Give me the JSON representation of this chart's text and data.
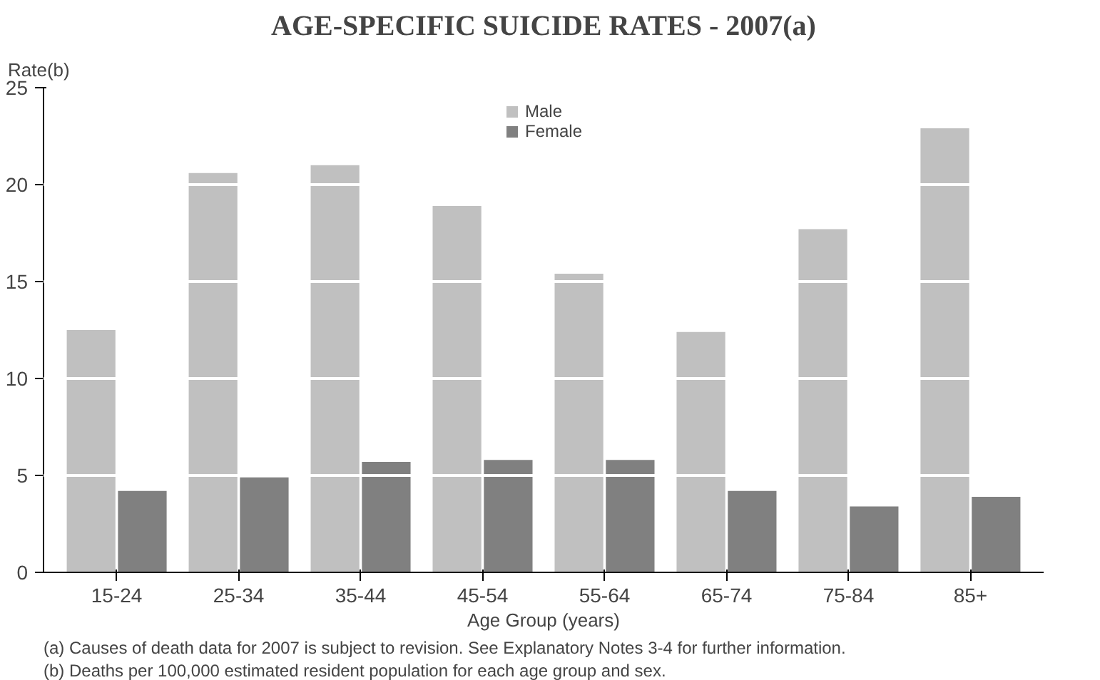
{
  "chart_data": {
    "type": "bar",
    "title": "AGE-SPECIFIC SUICIDE RATES - 2007(a)",
    "xlabel": "Age Group (years)",
    "ylabel": "Rate(b)",
    "categories": [
      "15-24",
      "25-34",
      "35-44",
      "45-54",
      "55-64",
      "65-74",
      "75-84",
      "85+"
    ],
    "series": [
      {
        "name": "Male",
        "color": "#c0c0c0",
        "values": [
          12.5,
          20.6,
          21.0,
          18.9,
          15.4,
          12.4,
          17.7,
          22.9
        ]
      },
      {
        "name": "Female",
        "color": "#808080",
        "values": [
          4.2,
          4.9,
          5.7,
          5.8,
          5.8,
          4.2,
          3.4,
          3.9
        ]
      }
    ],
    "ylim": [
      0,
      25
    ],
    "yticks": [
      0,
      5,
      10,
      15,
      20,
      25
    ],
    "grid": "y",
    "legend": "top",
    "annotations": [
      "(a) Causes of death data for 2007 is subject to revision. See Explanatory Notes 3-4 for further information.",
      "(b) Deaths per 100,000 estimated resident population for each age group and sex."
    ]
  }
}
